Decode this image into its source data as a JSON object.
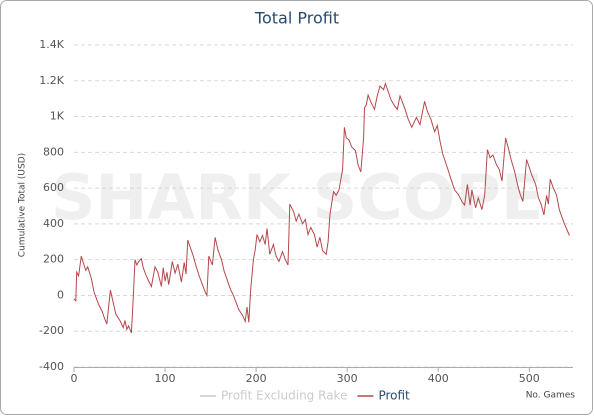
{
  "chart_data": {
    "type": "line",
    "title": "Total Profit",
    "watermark": "SHARK SCOPE",
    "y_label": "Cumulative Total (USD)",
    "x_label": "No. Games",
    "legend_items": [
      {
        "name": "Profit Excluding Rake",
        "color": "#cccccc",
        "enabled": false
      }
    ],
    "x": [
      0,
      2,
      3,
      5,
      8,
      11,
      13,
      15,
      19,
      22,
      24,
      27,
      31,
      33,
      36,
      40,
      43,
      46,
      51,
      54,
      56,
      58,
      60,
      63,
      65,
      67,
      69,
      71,
      74,
      76,
      79,
      82,
      85,
      89,
      92,
      96,
      98,
      100,
      102,
      104,
      108,
      111,
      114,
      118,
      121,
      123,
      125,
      127,
      131,
      134,
      137,
      141,
      144,
      146,
      148,
      152,
      155,
      158,
      162,
      165,
      168,
      171,
      175,
      178,
      181,
      185,
      188,
      190,
      192,
      194,
      197,
      199,
      201,
      204,
      207,
      210,
      212,
      215,
      219,
      222,
      225,
      229,
      232,
      235,
      237,
      241,
      244,
      247,
      251,
      254,
      257,
      260,
      264,
      267,
      270,
      273,
      277,
      279,
      281,
      285,
      288,
      291,
      295,
      297,
      299,
      302,
      305,
      309,
      312,
      315,
      318,
      319,
      321,
      323,
      326,
      330,
      333,
      336,
      340,
      342,
      345,
      348,
      352,
      355,
      358,
      363,
      367,
      371,
      376,
      380,
      385,
      388,
      392,
      396,
      399,
      402,
      405,
      410,
      414,
      418,
      422,
      426,
      429,
      432,
      435,
      437,
      441,
      444,
      448,
      451,
      454,
      457,
      460,
      464,
      467,
      470,
      474,
      477,
      480,
      484,
      487,
      490,
      493,
      497,
      500,
      503,
      507,
      510,
      513,
      516,
      519,
      521,
      523,
      526,
      530,
      533,
      536,
      539,
      544
    ],
    "series": [
      {
        "name": "Profit",
        "color": "#b5484b",
        "values": [
          -20,
          -30,
          130,
          110,
          220,
          170,
          140,
          160,
          95,
          20,
          -10,
          -50,
          -90,
          -120,
          -160,
          30,
          -40,
          -105,
          -145,
          -180,
          -140,
          -190,
          -170,
          -210,
          -20,
          200,
          170,
          190,
          205,
          155,
          115,
          80,
          50,
          160,
          130,
          50,
          155,
          80,
          130,
          60,
          190,
          125,
          175,
          75,
          185,
          120,
          310,
          280,
          220,
          165,
          115,
          60,
          20,
          0,
          220,
          170,
          325,
          255,
          200,
          135,
          90,
          45,
          0,
          -40,
          -80,
          -110,
          -145,
          -65,
          -150,
          35,
          200,
          255,
          340,
          300,
          335,
          285,
          375,
          230,
          285,
          220,
          190,
          245,
          200,
          170,
          510,
          470,
          415,
          455,
          400,
          425,
          340,
          380,
          340,
          270,
          325,
          250,
          230,
          300,
          450,
          580,
          560,
          590,
          705,
          940,
          880,
          870,
          830,
          810,
          730,
          690,
          880,
          1050,
          1065,
          1120,
          1080,
          1040,
          1115,
          1170,
          1150,
          1185,
          1140,
          1095,
          1060,
          1040,
          1115,
          1050,
          985,
          940,
          995,
          955,
          1085,
          1030,
          985,
          915,
          950,
          860,
          790,
          715,
          650,
          590,
          565,
          525,
          505,
          620,
          505,
          590,
          490,
          545,
          480,
          560,
          815,
          770,
          785,
          730,
          705,
          640,
          880,
          825,
          760,
          690,
          620,
          565,
          525,
          760,
          715,
          670,
          620,
          545,
          510,
          450,
          560,
          510,
          650,
          605,
          560,
          480,
          435,
          395,
          335
        ]
      }
    ],
    "xlim": [
      0,
      548
    ],
    "xticks": [
      0,
      100,
      200,
      300,
      400,
      500
    ],
    "ylim": [
      -400,
      1400
    ],
    "yticks": [
      -400,
      -200,
      0,
      200,
      400,
      600,
      800,
      {
        "value": 1000,
        "label": "1K"
      },
      {
        "value": 1200,
        "label": "1.2K"
      },
      {
        "value": 1400,
        "label": "1.4K"
      }
    ],
    "grid": true
  }
}
